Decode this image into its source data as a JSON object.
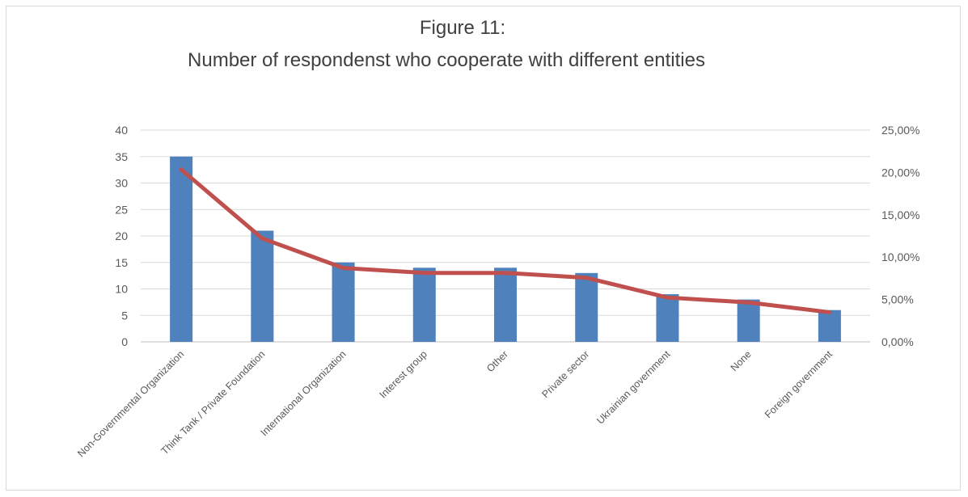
{
  "chart_data": {
    "type": "bar",
    "title": "Figure 11:",
    "subtitle": "Number of respondenst who cooperate with different entities",
    "categories": [
      "Non-Governmental Organization",
      "Think Tank / Private Foundation",
      "International Organization",
      "Interest group",
      "Other",
      "Private sector",
      "Ukrainian government",
      "None",
      "Foreign government"
    ],
    "series": [
      {
        "type": "bar",
        "axis": "left",
        "color": "#4f81bd",
        "values": [
          35,
          21,
          15,
          14,
          14,
          13,
          9,
          8,
          6
        ]
      },
      {
        "type": "line",
        "axis": "right",
        "color": "#c0504d",
        "values": [
          0.2035,
          0.1221,
          0.0872,
          0.0814,
          0.0814,
          0.0756,
          0.0523,
          0.0465,
          0.0349
        ]
      }
    ],
    "y_left": {
      "min": 0,
      "max": 40,
      "ticks": [
        "0",
        "5",
        "10",
        "15",
        "20",
        "25",
        "30",
        "35",
        "40"
      ]
    },
    "y_right": {
      "min": 0,
      "max": 0.25,
      "ticks": [
        "0,00%",
        "5,00%",
        "10,00%",
        "15,00%",
        "20,00%",
        "25,00%"
      ]
    },
    "grid": true,
    "legend": "none"
  }
}
